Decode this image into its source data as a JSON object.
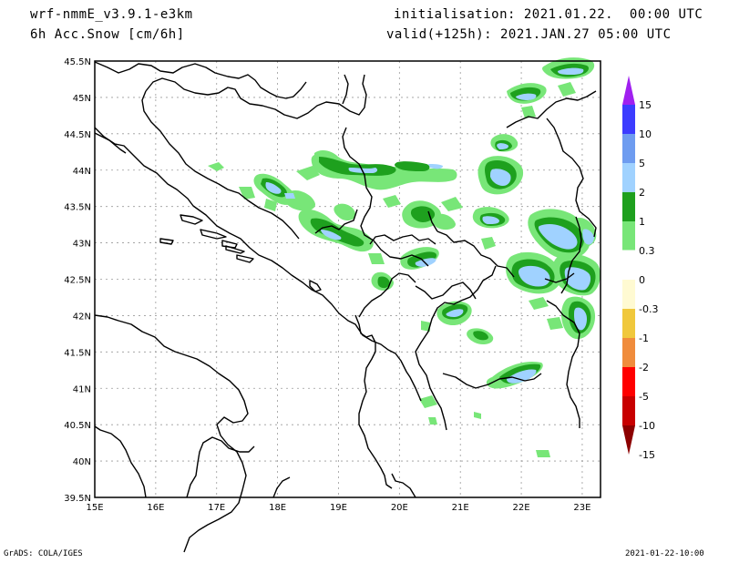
{
  "header": {
    "model": "wrf-nmmE_v3.9.1-e3km",
    "variable": "6h Acc.Snow [cm/6h]",
    "initialisation": "initialisation: 2021.01.22.  00:00 UTC",
    "valid": "valid(+125h): 2021.JAN.27 05:00 UTC"
  },
  "footer": {
    "left": "GrADS: COLA/IGES",
    "right": "2021-01-22-10:00"
  },
  "map": {
    "lon_labels": [
      "15E",
      "16E",
      "17E",
      "18E",
      "19E",
      "20E",
      "21E",
      "22E",
      "23E"
    ],
    "lat_labels": [
      "45.5N",
      "45N",
      "44.5N",
      "44N",
      "43.5N",
      "43N",
      "42.5N",
      "42N",
      "41.5N",
      "41N",
      "40.5N",
      "40N",
      "39.5N"
    ],
    "region": "Western Balkans / Adriatic"
  },
  "legend": {
    "levels": [
      "15",
      "10",
      "5",
      "2",
      "1",
      "0.3",
      "0",
      "-0.3",
      "-1",
      "-2",
      "-5",
      "-10",
      "-15"
    ],
    "colors": [
      "#a020f0",
      "#3c3cff",
      "#6e9cf0",
      "#a0d2ff",
      "#1ea01e",
      "#78e678",
      "#ffffff",
      "#fffad2",
      "#f0c83c",
      "#f08c3c",
      "#ff0000",
      "#c80000",
      "#8c0000"
    ]
  }
}
